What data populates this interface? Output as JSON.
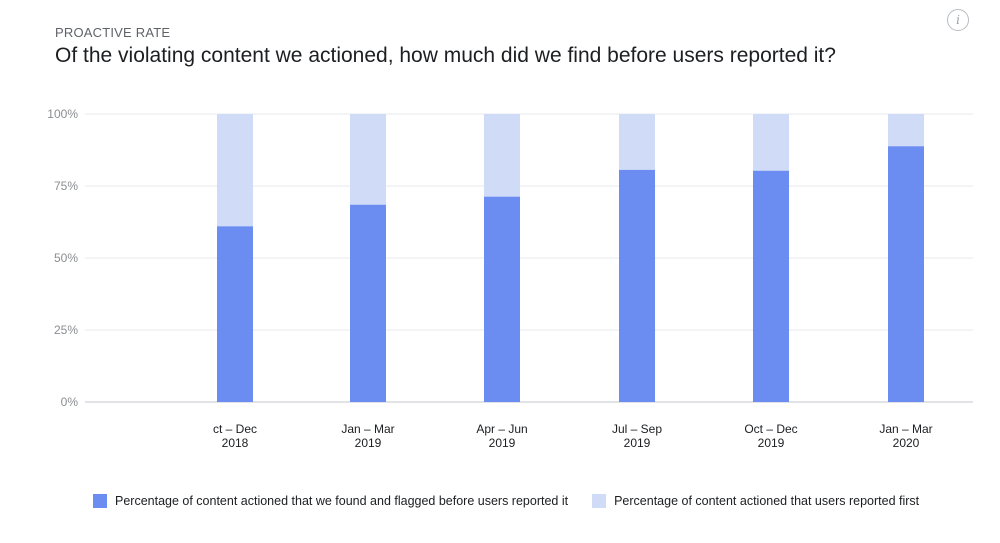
{
  "header": {
    "eyebrow": "PROACTIVE RATE",
    "title": "Of the violating content we actioned, how much did we find before users reported it?",
    "info_icon": "info-icon"
  },
  "chart_data": {
    "type": "bar",
    "stacked": true,
    "categories": [
      [
        "ct – Dec",
        "2018"
      ],
      [
        "Jan – Mar",
        "2019"
      ],
      [
        "Apr – Jun",
        "2019"
      ],
      [
        "Jul – Sep",
        "2019"
      ],
      [
        "Oct – Dec",
        "2019"
      ],
      [
        "Jan – Mar",
        "2020"
      ]
    ],
    "series": [
      {
        "name": "Percentage of content actioned that we found and flagged before users reported it",
        "values": [
          61,
          68.5,
          71.3,
          80.6,
          80.3,
          88.8
        ],
        "color": "#6b8cf0"
      },
      {
        "name": "Percentage of content actioned that users reported first",
        "values": [
          39,
          31.5,
          28.7,
          19.4,
          19.7,
          11.2
        ],
        "color": "#d0dcf7"
      }
    ],
    "ylim": [
      0,
      100
    ],
    "yticks": [
      "0%",
      "25%",
      "50%",
      "75%",
      "100%"
    ],
    "grid": true,
    "legend_position": "bottom"
  }
}
